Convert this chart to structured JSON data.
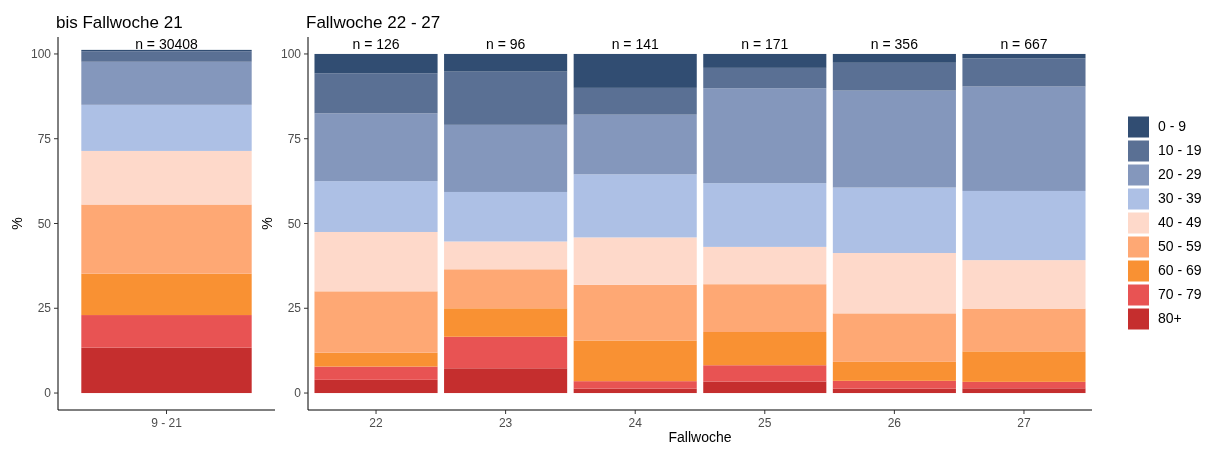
{
  "chart_data": [
    {
      "type": "bar",
      "title": "bis Fallwoche 21",
      "ylabel": "%",
      "categories": [
        "9 - 21"
      ],
      "stacked": true,
      "ylim": [
        -5,
        105
      ],
      "yticks": [
        0,
        25,
        50,
        75,
        100
      ],
      "grid": false,
      "legend": false,
      "annotations": [
        {
          "text": "n = 30408",
          "x": "9 - 21",
          "y": 100
        }
      ],
      "series": [
        {
          "color": "#c52e2e",
          "values": [
            13.4
          ]
        },
        {
          "color": "#e85353",
          "values": [
            9.6
          ]
        },
        {
          "color": "#f99133",
          "values": [
            12.2
          ]
        },
        {
          "color": "#fea874",
          "values": [
            20.4
          ]
        },
        {
          "color": "#fed9ca",
          "values": [
            15.8
          ]
        },
        {
          "color": "#adc0e5",
          "values": [
            13.6
          ]
        },
        {
          "color": "#8497bc",
          "values": [
            12.7
          ]
        },
        {
          "color": "#5a7094",
          "values": [
            3.1
          ]
        },
        {
          "color": "#314d72",
          "values": [
            0.4
          ]
        }
      ]
    },
    {
      "type": "bar",
      "title": "Fallwoche 22 - 27",
      "xlabel": "Fallwoche",
      "ylabel": "%",
      "categories": [
        "22",
        "23",
        "24",
        "25",
        "26",
        "27"
      ],
      "stacked": true,
      "ylim": [
        -5,
        105
      ],
      "yticks": [
        0,
        25,
        50,
        75,
        100
      ],
      "grid": false,
      "legend": "right",
      "annotations": [
        {
          "text": "n = 126",
          "x": "22",
          "y": 100
        },
        {
          "text": "n = 96",
          "x": "23",
          "y": 100
        },
        {
          "text": "n = 141",
          "x": "24",
          "y": 100
        },
        {
          "text": "n = 171",
          "x": "25",
          "y": 100
        },
        {
          "text": "n = 356",
          "x": "26",
          "y": 100
        },
        {
          "text": "n = 667",
          "x": "27",
          "y": 100
        }
      ],
      "series": [
        {
          "name": "80+",
          "color": "#c52e2e",
          "values": [
            3.9,
            7.3,
            1.3,
            3.4,
            1.3,
            1.4
          ]
        },
        {
          "name": "70 - 79",
          "color": "#e85353",
          "values": [
            3.9,
            9.3,
            2.2,
            4.8,
            2.3,
            1.9
          ]
        },
        {
          "name": "60 - 69",
          "color": "#f99133",
          "values": [
            4.1,
            8.4,
            12.0,
            9.8,
            5.6,
            9.0
          ]
        },
        {
          "name": "50 - 59",
          "color": "#fea874",
          "values": [
            18.1,
            11.5,
            16.4,
            14.1,
            14.3,
            12.6
          ]
        },
        {
          "name": "40 - 49",
          "color": "#fed9ca",
          "values": [
            17.5,
            8.2,
            14.0,
            11.0,
            17.8,
            14.3
          ]
        },
        {
          "name": "30 - 39",
          "color": "#adc0e5",
          "values": [
            15.0,
            14.6,
            18.6,
            18.8,
            19.3,
            20.4
          ]
        },
        {
          "name": "20 - 29",
          "color": "#8497bc",
          "values": [
            20.0,
            19.8,
            17.6,
            28.0,
            28.6,
            30.8
          ]
        },
        {
          "name": "10 - 19",
          "color": "#5a7094",
          "values": [
            11.8,
            15.7,
            7.9,
            6.0,
            8.2,
            8.3
          ]
        },
        {
          "name": "0 - 9",
          "color": "#314d72",
          "values": [
            5.7,
            5.2,
            10.0,
            4.1,
            2.6,
            1.3
          ]
        }
      ]
    }
  ]
}
